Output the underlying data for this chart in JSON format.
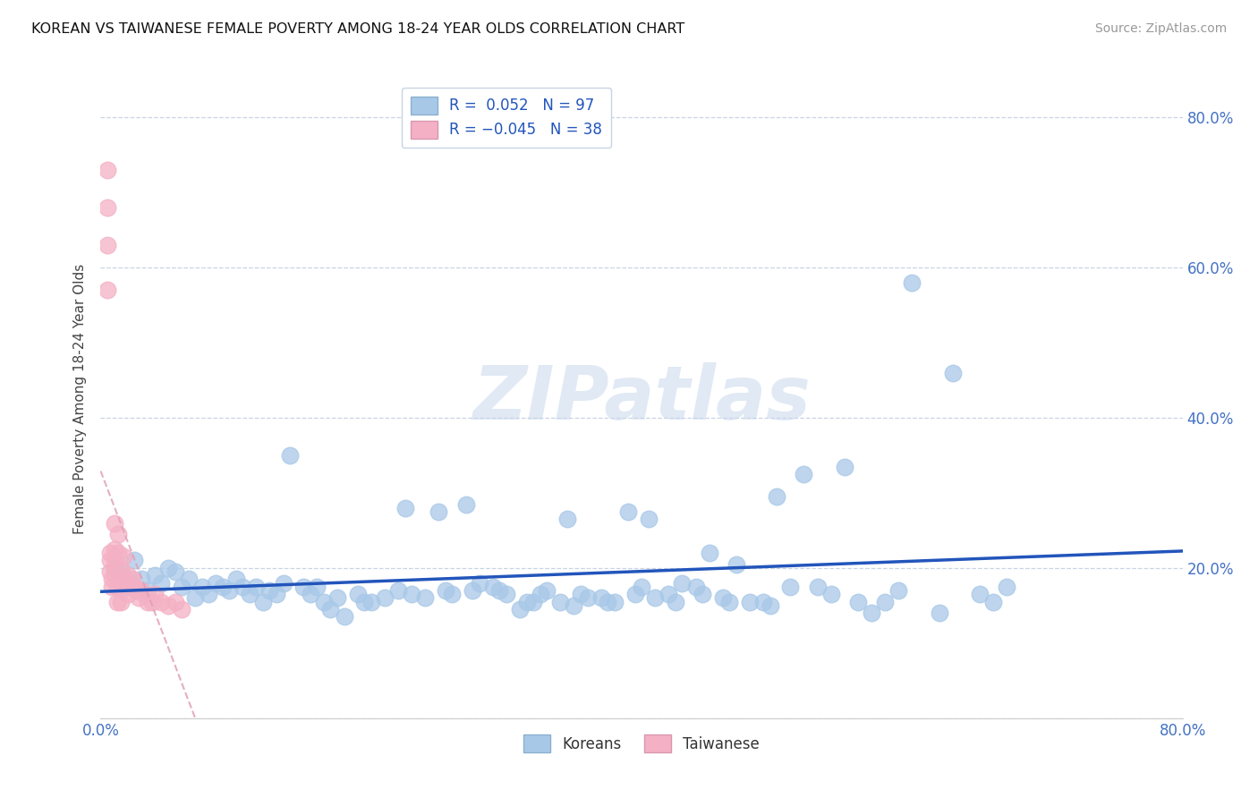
{
  "title": "KOREAN VS TAIWANESE FEMALE POVERTY AMONG 18-24 YEAR OLDS CORRELATION CHART",
  "source": "Source: ZipAtlas.com",
  "ylabel": "Female Poverty Among 18-24 Year Olds",
  "xlim": [
    0.0,
    0.8
  ],
  "ylim": [
    0.0,
    0.85
  ],
  "ytick_positions": [
    0.0,
    0.2,
    0.4,
    0.6,
    0.8
  ],
  "yticklabels_right": [
    "",
    "20.0%",
    "40.0%",
    "60.0%",
    "80.0%"
  ],
  "xtick_positions": [
    0.0,
    0.1,
    0.2,
    0.3,
    0.4,
    0.5,
    0.6,
    0.7,
    0.8
  ],
  "xticklabels": [
    "0.0%",
    "",
    "",
    "",
    "",
    "",
    "",
    "",
    "80.0%"
  ],
  "korean_R": 0.052,
  "korean_N": 97,
  "taiwanese_R": -0.045,
  "taiwanese_N": 38,
  "korean_color": "#a8c8e8",
  "taiwanese_color": "#f4b0c4",
  "korean_line_color": "#2255bb",
  "taiwanese_line_color": "#e0a0b8",
  "watermark_color": "#c8d8ec",
  "watermark_text": "ZIPatlas",
  "korean_x": [
    0.01,
    0.015,
    0.02,
    0.025,
    0.03,
    0.035,
    0.04,
    0.045,
    0.05,
    0.055,
    0.06,
    0.065,
    0.07,
    0.075,
    0.08,
    0.085,
    0.09,
    0.095,
    0.1,
    0.105,
    0.11,
    0.115,
    0.12,
    0.125,
    0.13,
    0.135,
    0.14,
    0.15,
    0.155,
    0.16,
    0.165,
    0.17,
    0.175,
    0.18,
    0.19,
    0.195,
    0.2,
    0.21,
    0.22,
    0.225,
    0.23,
    0.24,
    0.25,
    0.255,
    0.26,
    0.27,
    0.275,
    0.28,
    0.29,
    0.295,
    0.3,
    0.31,
    0.315,
    0.32,
    0.325,
    0.33,
    0.34,
    0.345,
    0.35,
    0.355,
    0.36,
    0.37,
    0.375,
    0.38,
    0.39,
    0.395,
    0.4,
    0.405,
    0.41,
    0.42,
    0.425,
    0.43,
    0.44,
    0.445,
    0.45,
    0.46,
    0.465,
    0.47,
    0.48,
    0.49,
    0.495,
    0.5,
    0.51,
    0.52,
    0.53,
    0.54,
    0.55,
    0.56,
    0.57,
    0.58,
    0.59,
    0.6,
    0.62,
    0.63,
    0.65,
    0.66,
    0.67
  ],
  "korean_y": [
    0.2,
    0.195,
    0.175,
    0.21,
    0.185,
    0.17,
    0.19,
    0.18,
    0.2,
    0.195,
    0.175,
    0.185,
    0.16,
    0.175,
    0.165,
    0.18,
    0.175,
    0.17,
    0.185,
    0.175,
    0.165,
    0.175,
    0.155,
    0.17,
    0.165,
    0.18,
    0.35,
    0.175,
    0.165,
    0.175,
    0.155,
    0.145,
    0.16,
    0.135,
    0.165,
    0.155,
    0.155,
    0.16,
    0.17,
    0.28,
    0.165,
    0.16,
    0.275,
    0.17,
    0.165,
    0.285,
    0.17,
    0.18,
    0.175,
    0.17,
    0.165,
    0.145,
    0.155,
    0.155,
    0.165,
    0.17,
    0.155,
    0.265,
    0.15,
    0.165,
    0.16,
    0.16,
    0.155,
    0.155,
    0.275,
    0.165,
    0.175,
    0.265,
    0.16,
    0.165,
    0.155,
    0.18,
    0.175,
    0.165,
    0.22,
    0.16,
    0.155,
    0.205,
    0.155,
    0.155,
    0.15,
    0.295,
    0.175,
    0.325,
    0.175,
    0.165,
    0.335,
    0.155,
    0.14,
    0.155,
    0.17,
    0.58,
    0.14,
    0.46,
    0.165,
    0.155,
    0.175
  ],
  "taiwanese_x": [
    0.005,
    0.005,
    0.005,
    0.005,
    0.007,
    0.007,
    0.007,
    0.008,
    0.008,
    0.01,
    0.01,
    0.01,
    0.01,
    0.012,
    0.012,
    0.013,
    0.013,
    0.015,
    0.015,
    0.015,
    0.017,
    0.018,
    0.02,
    0.02,
    0.022,
    0.023,
    0.025,
    0.027,
    0.028,
    0.03,
    0.032,
    0.035,
    0.038,
    0.04,
    0.045,
    0.05,
    0.055,
    0.06
  ],
  "taiwanese_y": [
    0.73,
    0.68,
    0.63,
    0.57,
    0.22,
    0.21,
    0.195,
    0.185,
    0.175,
    0.26,
    0.225,
    0.21,
    0.195,
    0.175,
    0.155,
    0.245,
    0.22,
    0.2,
    0.18,
    0.155,
    0.215,
    0.185,
    0.19,
    0.165,
    0.175,
    0.185,
    0.175,
    0.17,
    0.16,
    0.17,
    0.165,
    0.155,
    0.155,
    0.165,
    0.155,
    0.15,
    0.155,
    0.145
  ]
}
